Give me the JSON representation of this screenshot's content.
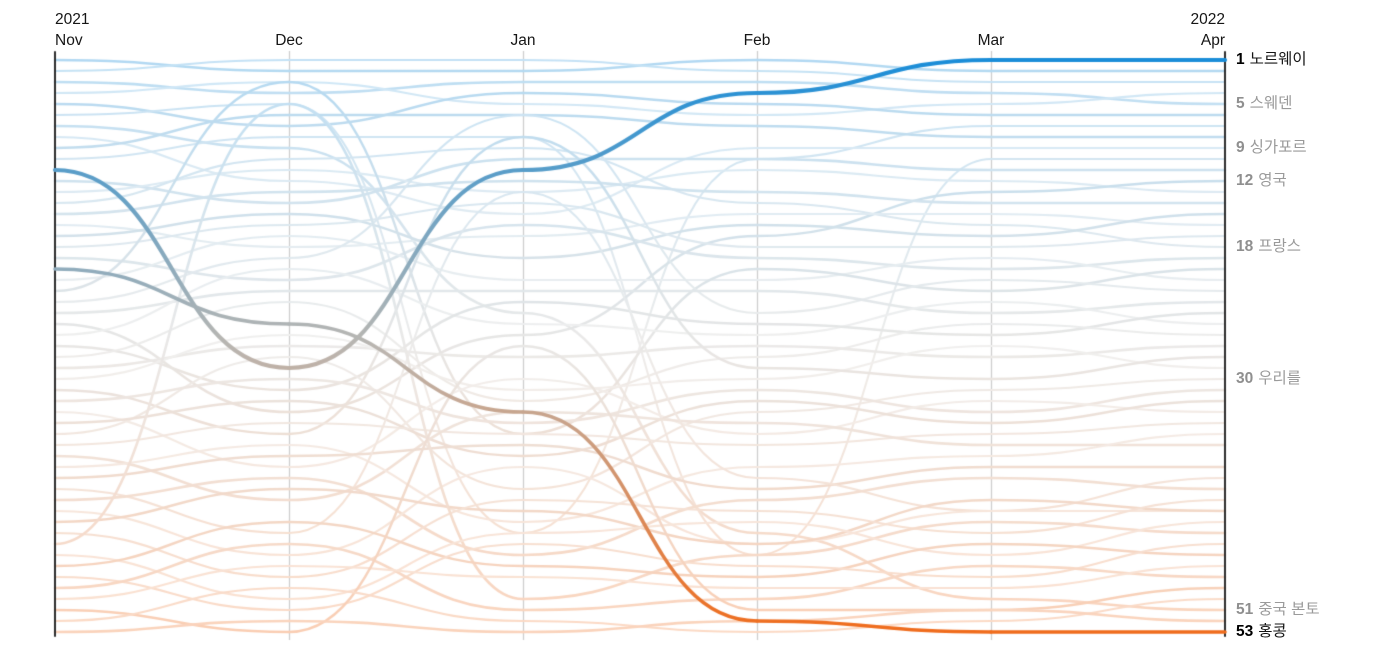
{
  "axis": {
    "left_year": "2021",
    "right_year": "2022",
    "months": [
      "Nov",
      "Dec",
      "Jan",
      "Feb",
      "Mar",
      "Apr"
    ]
  },
  "right_labels": [
    {
      "rank": "1",
      "name": "노르웨이",
      "highlighted": true
    },
    {
      "rank": "5",
      "name": "스웨덴",
      "highlighted": false
    },
    {
      "rank": "9",
      "name": "싱가포르",
      "highlighted": false
    },
    {
      "rank": "12",
      "name": "영국",
      "highlighted": false
    },
    {
      "rank": "18",
      "name": "프랑스",
      "highlighted": false
    },
    {
      "rank": "30",
      "name": "우리를",
      "highlighted": false
    },
    {
      "rank": "51",
      "name": "중국 본토",
      "highlighted": false
    },
    {
      "rank": "53",
      "name": "홍콩",
      "highlighted": true
    }
  ],
  "chart_data": {
    "type": "line",
    "subtype": "bump-rank",
    "x_labels": [
      "2021 Nov",
      "Dec",
      "Jan",
      "Feb",
      "Mar",
      "2022 Apr"
    ],
    "rank_range": [
      1,
      53
    ],
    "rank_axis_inverted": true,
    "grid": "vertical-month-lines",
    "legend": "none",
    "series": [
      {
        "name": "노르웨이",
        "ranks": [
          11,
          29,
          11,
          4,
          1,
          1
        ],
        "highlight": true
      },
      {
        "name": "홍콩",
        "ranks": [
          20,
          25,
          33,
          52,
          53,
          53
        ],
        "highlight": true
      }
    ],
    "background_series": [
      [
        1,
        2,
        2,
        1,
        2,
        2
      ],
      [
        2,
        1,
        1,
        2,
        3,
        3
      ],
      [
        3,
        4,
        3,
        3,
        4,
        5
      ],
      [
        4,
        3,
        5,
        6,
        5,
        4
      ],
      [
        5,
        7,
        4,
        5,
        6,
        6
      ],
      [
        6,
        5,
        44,
        10,
        7,
        7
      ],
      [
        7,
        9,
        24,
        44,
        50,
        51
      ],
      [
        8,
        12,
        15,
        9,
        9,
        9
      ],
      [
        9,
        6,
        6,
        7,
        8,
        8
      ],
      [
        10,
        8,
        8,
        46,
        10,
        10
      ],
      [
        12,
        14,
        10,
        10,
        11,
        11
      ],
      [
        13,
        11,
        13,
        11,
        12,
        13
      ],
      [
        25,
        33,
        26,
        17,
        13,
        12
      ],
      [
        14,
        10,
        9,
        14,
        16,
        18
      ],
      [
        15,
        13,
        12,
        13,
        14,
        14
      ],
      [
        16,
        18,
        17,
        15,
        15,
        16
      ],
      [
        17,
        15,
        19,
        16,
        17,
        15
      ],
      [
        18,
        16,
        14,
        18,
        18,
        17
      ],
      [
        19,
        21,
        16,
        19,
        20,
        19
      ],
      [
        21,
        17,
        21,
        21,
        19,
        21
      ],
      [
        22,
        3,
        35,
        20,
        22,
        20
      ],
      [
        23,
        19,
        6,
        24,
        21,
        22
      ],
      [
        24,
        22,
        22,
        22,
        24,
        23
      ],
      [
        26,
        20,
        25,
        26,
        23,
        25
      ],
      [
        27,
        31,
        23,
        25,
        26,
        24
      ],
      [
        28,
        23,
        32,
        28,
        25,
        26
      ],
      [
        29,
        27,
        28,
        27,
        28,
        27
      ],
      [
        30,
        26,
        31,
        30,
        27,
        29
      ],
      [
        31,
        35,
        8,
        29,
        30,
        28
      ],
      [
        35,
        28,
        40,
        33,
        31,
        30
      ],
      [
        32,
        30,
        34,
        31,
        33,
        31
      ],
      [
        33,
        38,
        30,
        35,
        32,
        33
      ],
      [
        34,
        32,
        37,
        32,
        34,
        32
      ],
      [
        36,
        34,
        35,
        36,
        35,
        34
      ],
      [
        37,
        41,
        33,
        34,
        36,
        36
      ],
      [
        38,
        36,
        43,
        38,
        37,
        35
      ],
      [
        39,
        37,
        36,
        40,
        38,
        38
      ],
      [
        40,
        44,
        13,
        39,
        42,
        39
      ],
      [
        41,
        39,
        46,
        41,
        39,
        40
      ],
      [
        42,
        46,
        38,
        45,
        42,
        42
      ],
      [
        43,
        40,
        42,
        45,
        41,
        42
      ],
      [
        44,
        48,
        41,
        42,
        44,
        41
      ],
      [
        45,
        5,
        50,
        46,
        43,
        44
      ],
      [
        46,
        50,
        44,
        43,
        46,
        43
      ],
      [
        47,
        43,
        47,
        48,
        45,
        46
      ],
      [
        48,
        51,
        45,
        47,
        48,
        45
      ],
      [
        49,
        45,
        51,
        50,
        47,
        48
      ],
      [
        50,
        47,
        48,
        49,
        49,
        47
      ],
      [
        51,
        53,
        27,
        51,
        51,
        49
      ],
      [
        52,
        49,
        52,
        53,
        52,
        50
      ],
      [
        53,
        52,
        53,
        52,
        51,
        52
      ]
    ],
    "palette": {
      "blue": "#1a8dd8",
      "mid_gray": "#bbb7b2",
      "orange": "#f06c1c",
      "light_blue": "#c9e2f4",
      "light_orange": "#f9d9c5",
      "grid": "#cdcdcd",
      "axis": "#2b2b2b",
      "label_gray": "#9a9a9a",
      "label_black": "#111111"
    }
  }
}
